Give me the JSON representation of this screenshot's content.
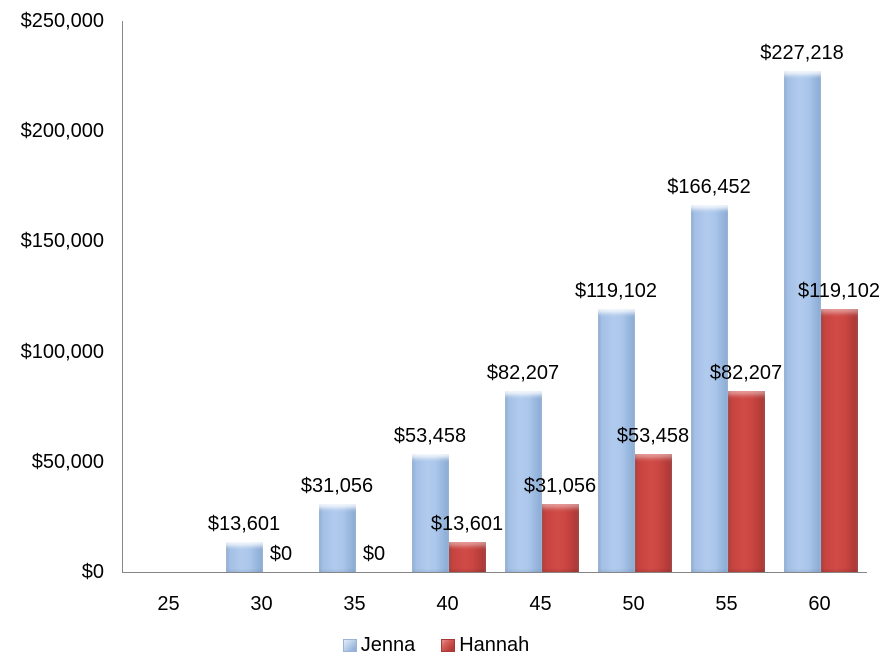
{
  "chart_data": {
    "type": "bar",
    "title": "",
    "xlabel": "",
    "ylabel": "",
    "categories": [
      "25",
      "30",
      "35",
      "40",
      "45",
      "50",
      "55",
      "60"
    ],
    "series": [
      {
        "name": "Jenna",
        "color": "#95B3D7",
        "values": [
          0,
          13601,
          31056,
          53458,
          82207,
          119102,
          166452,
          227218
        ],
        "labels": [
          null,
          "$13,601",
          "$31,056",
          "$53,458",
          "$82,207",
          "$119,102",
          "$166,452",
          "$227,218"
        ]
      },
      {
        "name": "Hannah",
        "color": "#C0504D",
        "values": [
          0,
          0,
          0,
          13601,
          31056,
          53458,
          82207,
          119102
        ],
        "labels": [
          null,
          "$0",
          "$0",
          "$13,601",
          "$31,056",
          "$53,458",
          "$82,207",
          "$119,102"
        ]
      }
    ],
    "ylim": [
      0,
      250000
    ],
    "y_tick_values": [
      0,
      50000,
      100000,
      150000,
      200000,
      250000
    ],
    "y_tick_labels": [
      "$0",
      "$50,000",
      "$100,000",
      "$150,000",
      "$200,000",
      "$250,000"
    ],
    "grid": false,
    "legend_position": "bottom",
    "axis_color": "#868686",
    "text_color": "#000000"
  }
}
